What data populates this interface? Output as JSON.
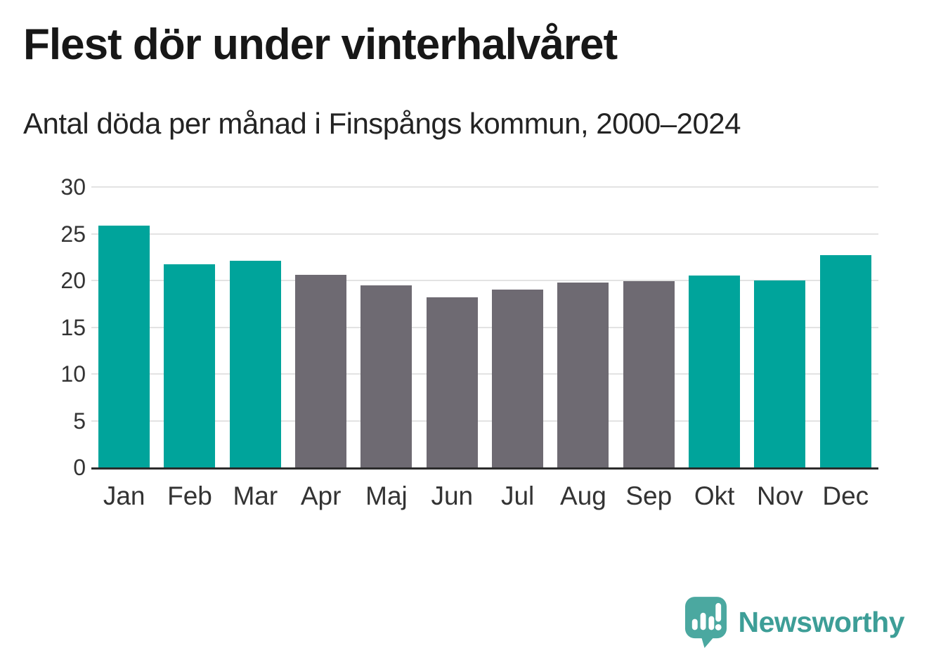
{
  "header": {
    "title": "Flest dör under vinterhalvåret",
    "subtitle": "Antal döda per månad i Finspångs kommun, 2000–2024"
  },
  "chart_data": {
    "type": "bar",
    "title": "Flest dör under vinterhalvåret",
    "subtitle": "Antal döda per månad i Finspångs kommun, 2000–2024",
    "categories": [
      "Jan",
      "Feb",
      "Mar",
      "Apr",
      "Maj",
      "Jun",
      "Jul",
      "Aug",
      "Sep",
      "Okt",
      "Nov",
      "Dec"
    ],
    "values": [
      25.9,
      21.7,
      22.1,
      20.6,
      19.5,
      18.2,
      19.0,
      19.8,
      19.9,
      20.5,
      20.0,
      22.7
    ],
    "bar_colors": [
      "#00A49B",
      "#00A49B",
      "#00A49B",
      "#6E6A72",
      "#6E6A72",
      "#6E6A72",
      "#6E6A72",
      "#6E6A72",
      "#6E6A72",
      "#00A49B",
      "#00A49B",
      "#00A49B"
    ],
    "highlight_color": "#00A49B",
    "muted_color": "#6E6A72",
    "xlabel": "",
    "ylabel": "",
    "ylim": [
      0,
      30
    ],
    "yticks": [
      0,
      5,
      10,
      15,
      20,
      25,
      30
    ],
    "grid": "horizontal",
    "gridline_color": "#E3E3E3",
    "axis_color": "#2B2B2B",
    "tick_label_color": "#333333",
    "legend": "none"
  },
  "footer": {
    "brand": "Newsworthy",
    "brand_color": "#3D9E97",
    "logo_mark_color": "#4BA8A0",
    "logo_icon": "newsworthy-bubble-chart-icon"
  }
}
